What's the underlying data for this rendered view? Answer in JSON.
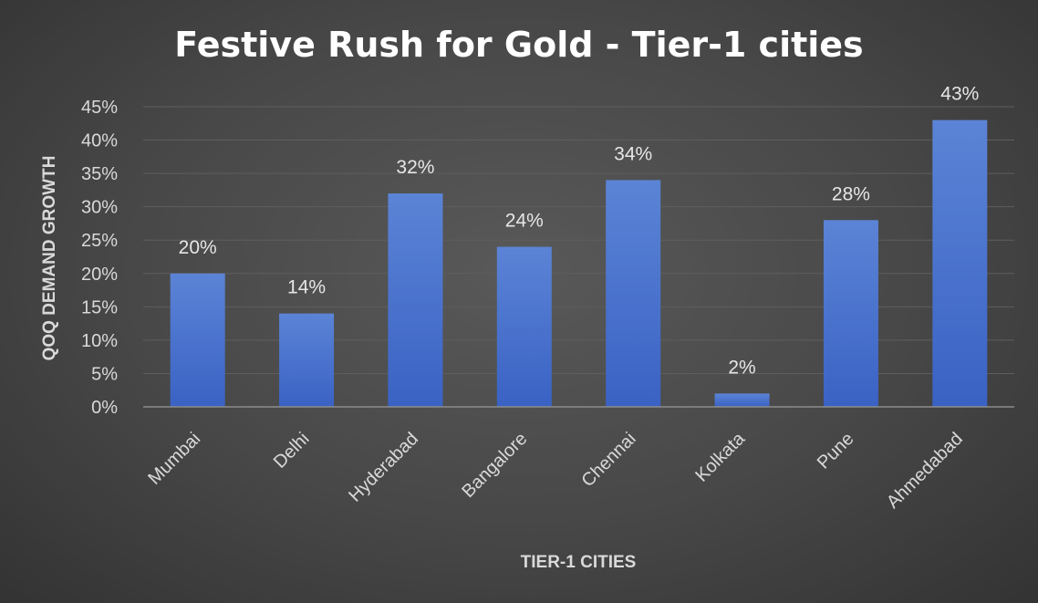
{
  "chart_data": {
    "type": "bar",
    "title": "Festive Rush for Gold - Tier-1 cities",
    "xlabel": "TIER-1 CITIES",
    "ylabel": "QOQ DEMAND GROWTH",
    "categories": [
      "Mumbai",
      "Delhi",
      "Hyderabad",
      "Bangalore",
      "Chennai",
      "Kolkata",
      "Pune",
      "Ahmedabad"
    ],
    "values": [
      20,
      14,
      32,
      24,
      34,
      2,
      28,
      43
    ],
    "data_labels": [
      "20%",
      "14%",
      "32%",
      "24%",
      "34%",
      "2%",
      "28%",
      "43%"
    ],
    "ylim": [
      0,
      45
    ],
    "yticks": [
      0,
      5,
      10,
      15,
      20,
      25,
      30,
      35,
      40,
      45
    ],
    "ytick_labels": [
      "0%",
      "5%",
      "10%",
      "15%",
      "20%",
      "25%",
      "30%",
      "35%",
      "40%",
      "45%"
    ],
    "grid": true,
    "legend": "none",
    "colors": {
      "bar_top": "#5b84d6",
      "bar_bottom": "#3a62c4",
      "background": "#474747",
      "gridline": "#5e5e5e",
      "text": "#d9d9d9"
    }
  }
}
